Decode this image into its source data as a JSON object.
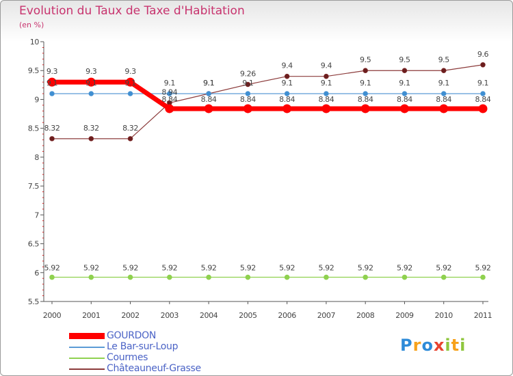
{
  "header": {
    "title": "Evolution du Taux de Taxe d'Habitation",
    "unit": "(en %)"
  },
  "chart_data": {
    "type": "line",
    "title": "Evolution du Taux de Taxe d'Habitation",
    "ylabel": "(en %)",
    "xlabel": "",
    "ylim": [
      5.5,
      10
    ],
    "y_ticks": [
      "5.5",
      "6",
      "6.5",
      "7",
      "7.5",
      "8",
      "8.5",
      "9",
      "9.5",
      "10"
    ],
    "categories": [
      "2000",
      "2001",
      "2002",
      "2003",
      "2004",
      "2005",
      "2006",
      "2007",
      "2008",
      "2009",
      "2010",
      "2011"
    ],
    "grid": false,
    "series": [
      {
        "name": "GOURDON",
        "color": "#ff0000",
        "values": [
          9.3,
          9.3,
          9.3,
          8.84,
          8.84,
          8.84,
          8.84,
          8.84,
          8.84,
          8.84,
          8.84,
          8.84
        ],
        "labels": [
          "9.3",
          "9.3",
          "9.3",
          "8.84",
          "8.84",
          "8.84",
          "8.84",
          "8.84",
          "8.84",
          "8.84",
          "8.84",
          "8.84"
        ]
      },
      {
        "name": "Le Bar-sur-Loup",
        "color": "#5b9bd5",
        "values": [
          9.1,
          9.1,
          9.1,
          9.1,
          9.1,
          9.1,
          9.1,
          9.1,
          9.1,
          9.1,
          9.1,
          9.1
        ],
        "labels": [
          "9.1",
          "9.1",
          "9.1",
          "9.1",
          "9.1",
          "9.1",
          "9.1",
          "9.1",
          "9.1",
          "9.1",
          "9.1",
          "9.1"
        ]
      },
      {
        "name": "Courmes",
        "color": "#8fd14f",
        "values": [
          5.92,
          5.92,
          5.92,
          5.92,
          5.92,
          5.92,
          5.92,
          5.92,
          5.92,
          5.92,
          5.92,
          5.92
        ],
        "labels": [
          "5.92",
          "5.92",
          "5.92",
          "5.92",
          "5.92",
          "5.92",
          "5.92",
          "5.92",
          "5.92",
          "5.92",
          "5.92",
          "5.92"
        ]
      },
      {
        "name": "Châteauneuf-Grasse",
        "color": "#8b3a3a",
        "values": [
          8.32,
          8.32,
          8.32,
          8.94,
          9.1,
          9.26,
          9.4,
          9.4,
          9.5,
          9.5,
          9.5,
          9.6
        ],
        "labels": [
          "8.32",
          "8.32",
          "8.32",
          "8.94",
          "9.1",
          "9.26",
          "9.4",
          "9.4",
          "9.5",
          "9.5",
          "9.5",
          "9.6"
        ]
      }
    ]
  },
  "legend": {
    "items": [
      "GOURDON",
      "Le Bar-sur-Loup",
      "Courmes",
      "Châteauneuf-Grasse"
    ]
  },
  "logo": {
    "letters": [
      "P",
      "r",
      "o",
      "x",
      "i",
      "t",
      "i"
    ],
    "colors": [
      "#2e8bd8",
      "#f7a21b",
      "#2e8bd8",
      "#e8432f",
      "#8fc63e",
      "#f7a21b",
      "#8fc63e"
    ]
  },
  "colors": {
    "title": "#c8336e",
    "axis": "#5a5a5a",
    "legend_text": "#4b63c6"
  }
}
